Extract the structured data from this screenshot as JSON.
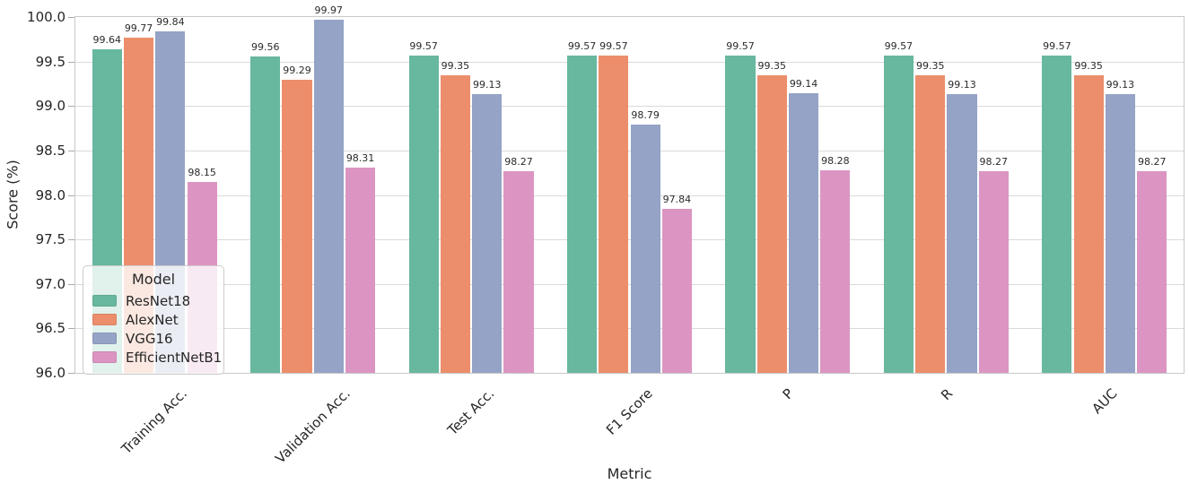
{
  "chart_data": {
    "type": "bar",
    "title": "",
    "xlabel": "Metric",
    "ylabel": "Score (%)",
    "ylim": [
      96.0,
      100.0
    ],
    "ytick_step": 0.5,
    "ytick_labels": [
      "96.0",
      "96.5",
      "97.0",
      "97.5",
      "98.0",
      "98.5",
      "99.0",
      "99.5",
      "100.0"
    ],
    "grid": true,
    "legend": {
      "title": "Model",
      "position": "lower left"
    },
    "categories": [
      "Training Acc.",
      "Validation Acc.",
      "Test Acc.",
      "F1 Score",
      "P",
      "R",
      "AUC"
    ],
    "series": [
      {
        "name": "ResNet18",
        "color": "#68b79f",
        "values": [
          99.64,
          99.56,
          99.57,
          99.57,
          99.57,
          99.57,
          99.57
        ]
      },
      {
        "name": "AlexNet",
        "color": "#ec8e6b",
        "values": [
          99.77,
          99.29,
          99.35,
          99.57,
          99.35,
          99.35,
          99.35
        ]
      },
      {
        "name": "VGG16",
        "color": "#94a3c6",
        "values": [
          99.84,
          99.97,
          99.13,
          98.79,
          99.14,
          99.13,
          99.13
        ]
      },
      {
        "name": "EfficientNetB1",
        "color": "#dc95c2",
        "values": [
          98.15,
          98.31,
          98.27,
          97.84,
          98.28,
          98.27,
          98.27
        ]
      }
    ],
    "value_label_decimals": 2
  }
}
